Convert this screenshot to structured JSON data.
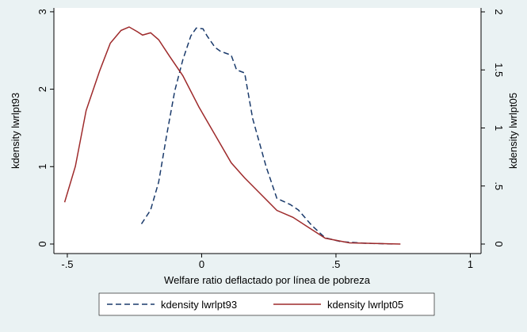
{
  "chart_data": {
    "type": "line",
    "x_label": "Welfare ratio deflactado por línea de pobreza",
    "y_label": "kdensity lwrlpt93",
    "y2_label": "kdensity lwrlpt05",
    "xlim": [
      -0.55,
      1.04
    ],
    "xticks": [
      {
        "value": -0.5,
        "label": "-.5"
      },
      0,
      {
        "value": 0.5,
        "label": ".5"
      },
      1
    ],
    "ylim": [
      -0.123,
      3.05
    ],
    "yticks": [
      0,
      1,
      2,
      3
    ],
    "y2lim": [
      -0.082,
      2.034
    ],
    "y2ticks": [
      0,
      {
        "value": 0.5,
        "label": ".5"
      },
      1,
      {
        "value": 1.5,
        "label": "1.5"
      },
      2
    ],
    "legend": "bottom",
    "series": [
      {
        "name": "kdensity lwrlpt93",
        "color": "#1a3a6b",
        "dash": true,
        "x": [
          -0.224,
          -0.19,
          -0.16,
          -0.13,
          -0.1,
          -0.07,
          -0.04,
          -0.02,
          0.005,
          0.02,
          0.05,
          0.07,
          0.11,
          0.13,
          0.16,
          0.19,
          0.24,
          0.28,
          0.33,
          0.36,
          0.41,
          0.46,
          0.52,
          0.61,
          0.72
        ],
        "values": [
          0.26,
          0.44,
          0.8,
          1.41,
          1.98,
          2.38,
          2.69,
          2.79,
          2.78,
          2.69,
          2.54,
          2.49,
          2.44,
          2.25,
          2.21,
          1.62,
          1.0,
          0.59,
          0.51,
          0.44,
          0.24,
          0.08,
          0.03,
          0.01,
          0
        ]
      },
      {
        "name": "kdensity lwrlpt05",
        "color": "#9e2a2b",
        "dash": false,
        "axis": "y2",
        "x": [
          -0.51,
          -0.47,
          -0.43,
          -0.38,
          -0.34,
          -0.3,
          -0.27,
          -0.24,
          -0.22,
          -0.19,
          -0.16,
          -0.12,
          -0.07,
          -0.01,
          0.05,
          0.11,
          0.16,
          0.22,
          0.28,
          0.34,
          0.4,
          0.46,
          0.55,
          0.74
        ],
        "values": [
          0.36,
          0.67,
          1.15,
          1.49,
          1.73,
          1.84,
          1.87,
          1.83,
          1.8,
          1.82,
          1.76,
          1.62,
          1.45,
          1.18,
          0.94,
          0.7,
          0.57,
          0.43,
          0.29,
          0.23,
          0.14,
          0.05,
          0.01,
          0
        ]
      }
    ]
  }
}
